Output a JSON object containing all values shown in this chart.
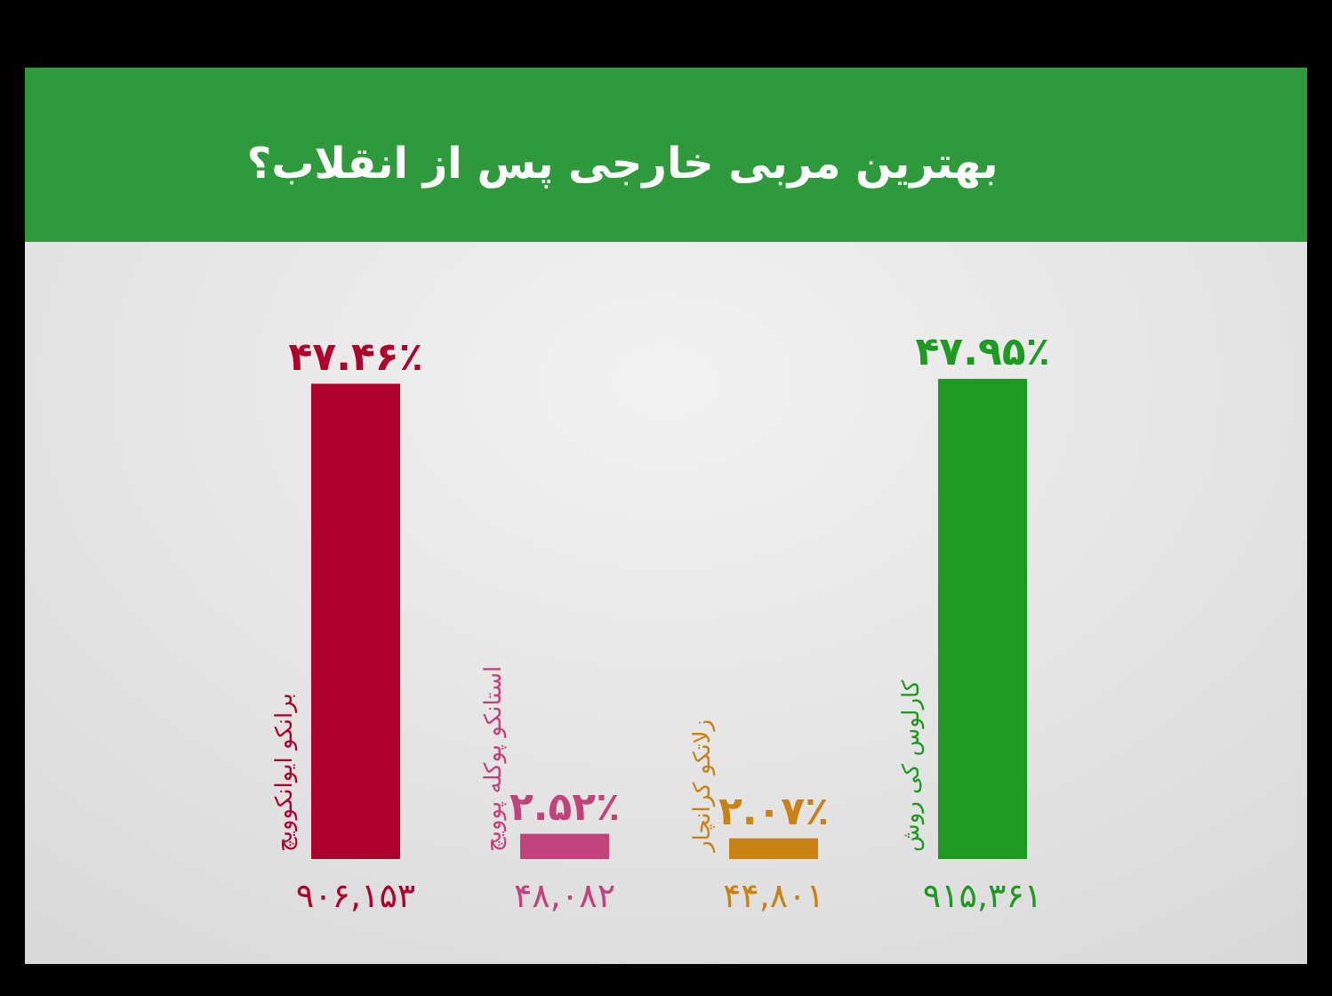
{
  "chart_data": {
    "type": "bar",
    "title": "بهترین مربی خارجی پس از انقلاب؟",
    "categories": [
      "برانکو ایوانکوویچ",
      "استانکو پوکله پوویچ",
      "زلاتکو کرانچار",
      "کارلوس کی روش"
    ],
    "values": [
      47.46,
      2.52,
      2.07,
      47.95
    ],
    "colors": [
      "#b0002c",
      "#c2427c",
      "#c98214",
      "#1e9a22"
    ],
    "value_labels": [
      "۴۷.۴۶٪",
      "۲.۵۲٪",
      "۲.۰۷٪",
      "۴۷.۹۵٪"
    ],
    "annotations": [
      "۹۰۶,۱۵۳",
      "۴۸,۰۸۲",
      "۴۴,۸۰۱",
      "۹۱۵,۳۶۱"
    ]
  }
}
